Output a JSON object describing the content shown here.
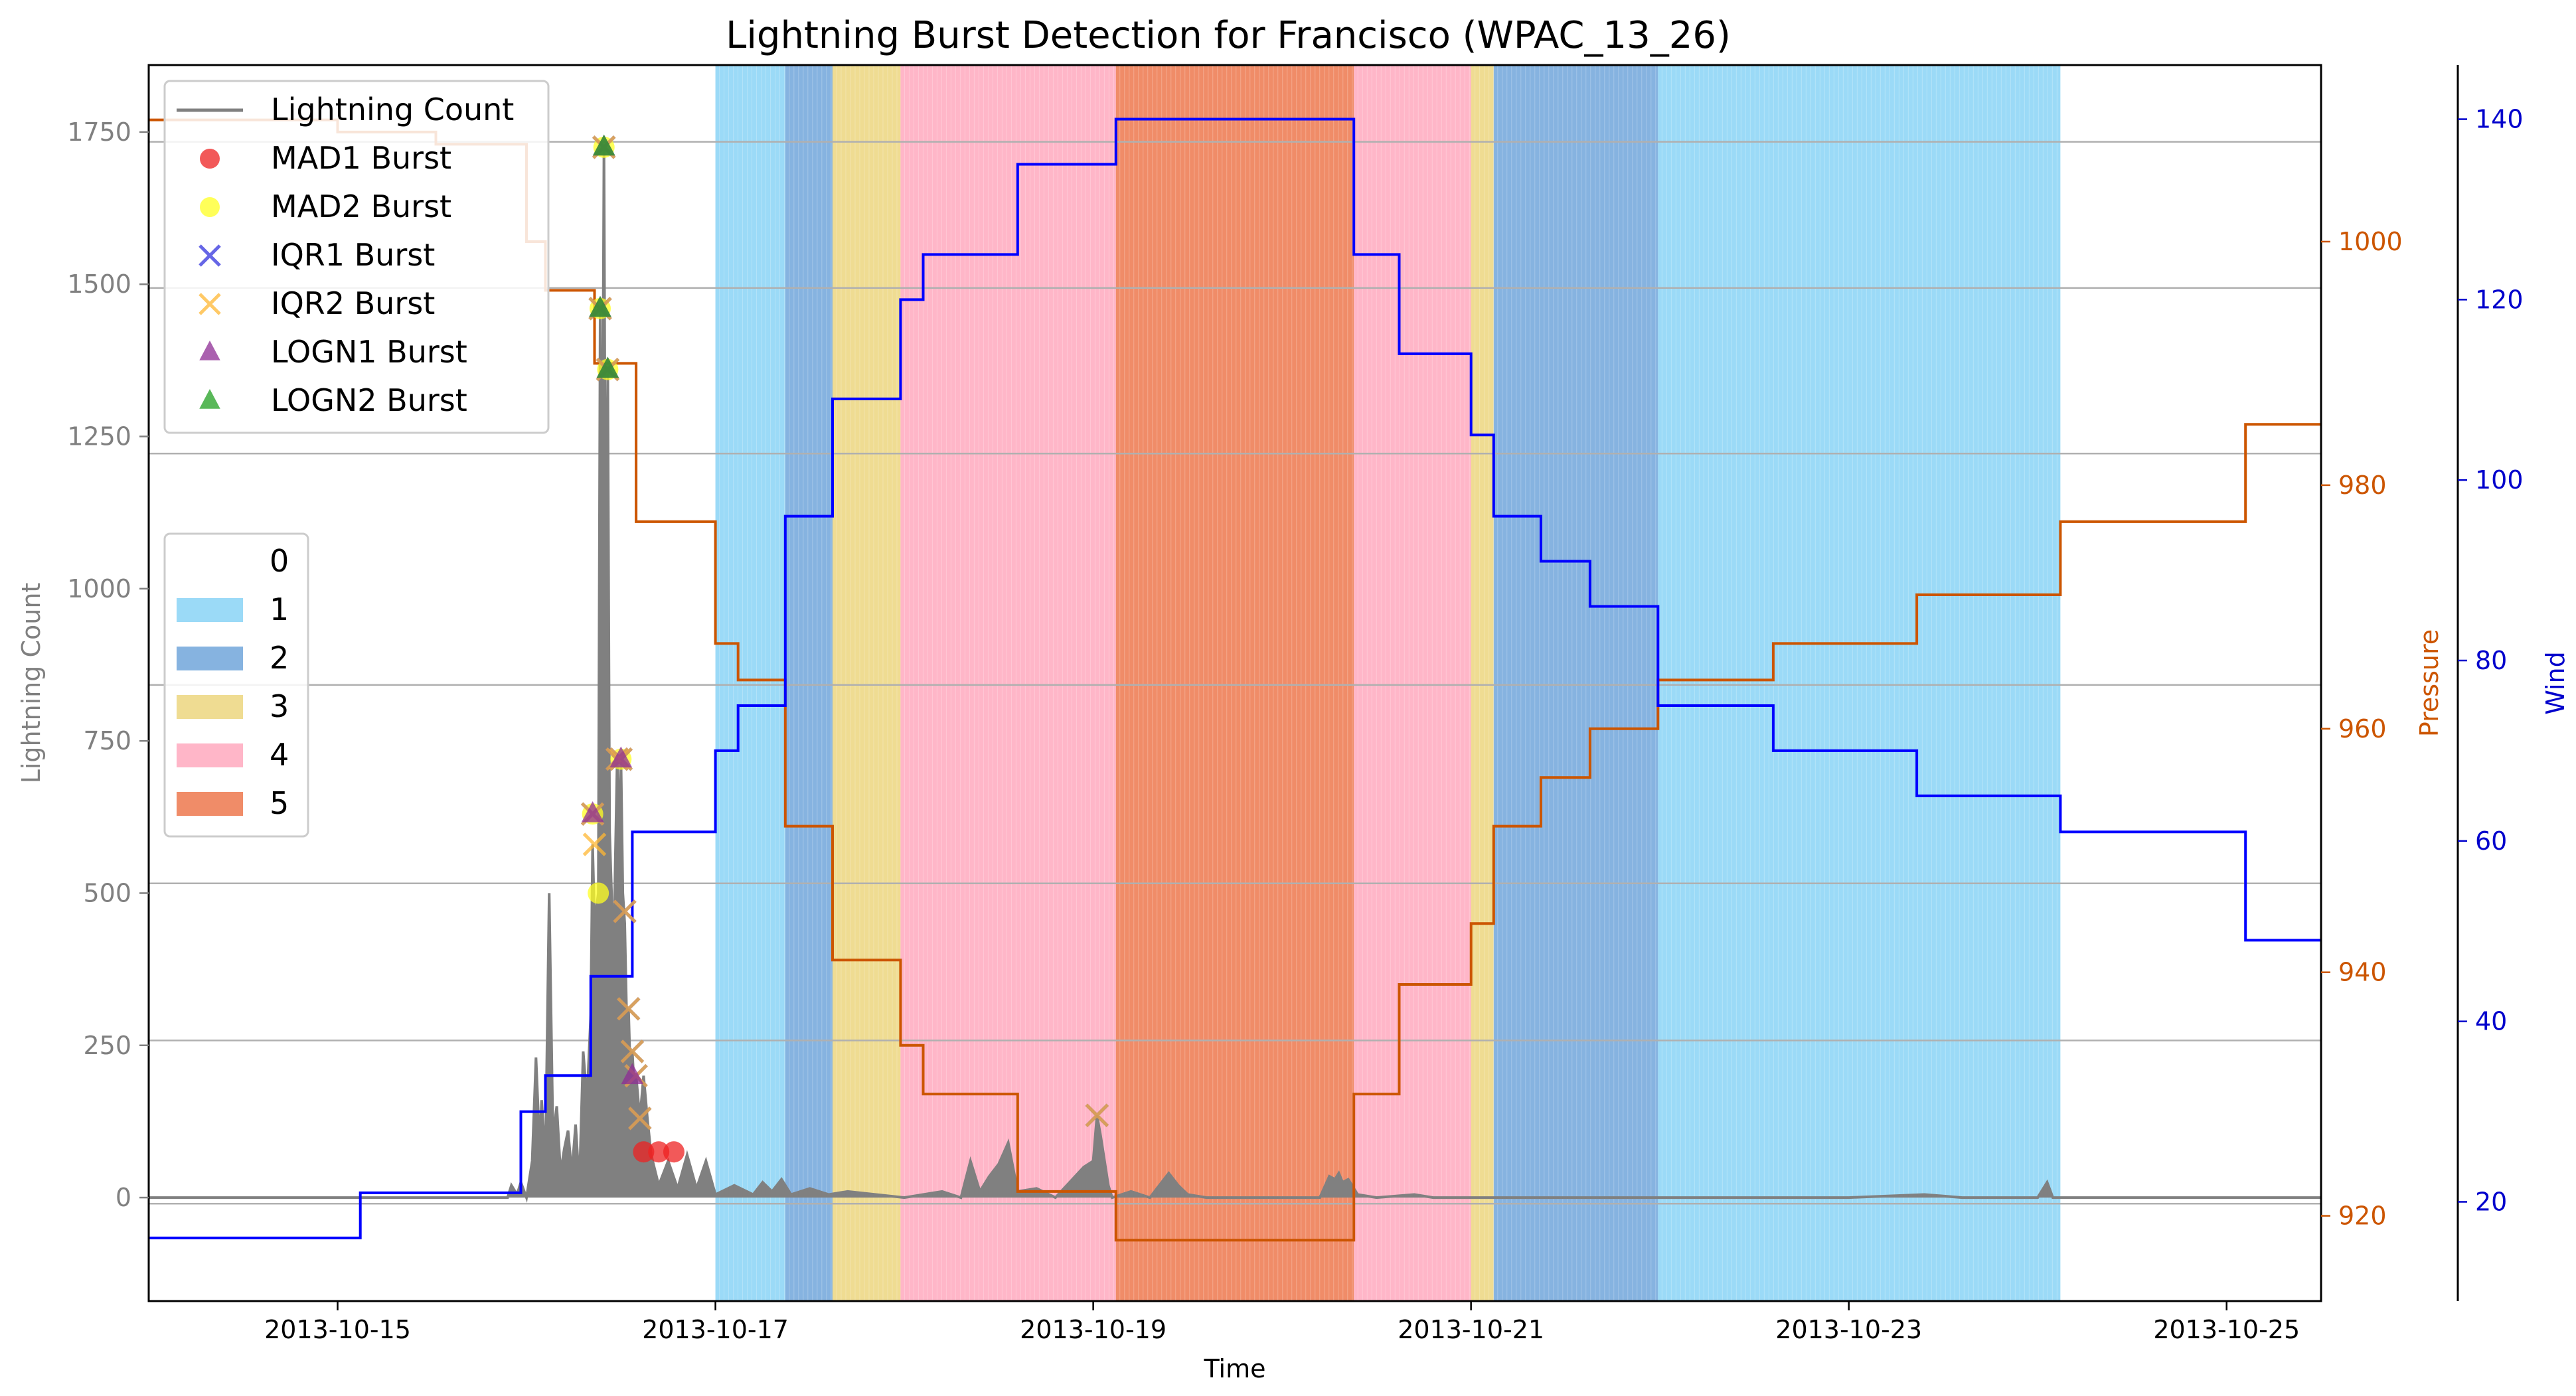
{
  "chart_data": {
    "type": "line",
    "title": "Lightning Burst Detection for Francisco (WPAC_13_26)",
    "xlabel": "Time",
    "ylabel_left": "Lightning Count",
    "ylabel_pressure": "Pressure",
    "ylabel_wind": "Wind",
    "xlim": [
      "2013-10-14T00:00",
      "2013-10-25T12:00"
    ],
    "ylim_left": [
      -170,
      1860
    ],
    "ylim_pressure": [
      913,
      1014.5
    ],
    "ylim_wind": [
      9,
      146
    ],
    "x_ticks": [
      "2013-10-15",
      "2013-10-17",
      "2013-10-19",
      "2013-10-21",
      "2013-10-23",
      "2013-10-25"
    ],
    "y_ticks_left": [
      "0",
      "250",
      "500",
      "750",
      "1000",
      "1250",
      "1500",
      "1750"
    ],
    "y_ticks_pressure": [
      "920",
      "940",
      "960",
      "980",
      "1000"
    ],
    "y_ticks_wind": [
      "20",
      "40",
      "60",
      "80",
      "100",
      "120",
      "140"
    ],
    "grid_pressure_values": [
      921,
      934.4,
      947.3,
      963.6,
      982.6,
      996.2,
      1008.2
    ],
    "colors": {
      "lightning": "#808080",
      "pressure": "#cc5500",
      "wind": "#0000ff",
      "cat1": "#9bdaf7",
      "cat2": "#86b3e0",
      "cat3": "#efdc92",
      "cat4": "#ffb6c8",
      "cat5": "#f08c68"
    },
    "category_legend": {
      "entries": [
        {
          "label": "0",
          "color": "#ffffff"
        },
        {
          "label": "1",
          "color": "#9bdaf7"
        },
        {
          "label": "2",
          "color": "#86b3e0"
        },
        {
          "label": "3",
          "color": "#efdc92"
        },
        {
          "label": "4",
          "color": "#ffb6c8"
        },
        {
          "label": "5",
          "color": "#f08c68"
        }
      ]
    },
    "burst_legend": {
      "entries": [
        {
          "label": "Lightning Count",
          "marker": "line",
          "color": "#808080"
        },
        {
          "label": "MAD1 Burst",
          "marker": "circle",
          "color": "#ee2222"
        },
        {
          "label": "MAD2 Burst",
          "marker": "circle",
          "color": "#ffff22"
        },
        {
          "label": "IQR1 Burst",
          "marker": "x",
          "color": "#3333dd"
        },
        {
          "label": "IQR2 Burst",
          "marker": "x",
          "color": "#ffb733"
        },
        {
          "label": "LOGN1 Burst",
          "marker": "triangle",
          "color": "#8e2c94"
        },
        {
          "label": "LOGN2 Burst",
          "marker": "triangle",
          "color": "#22a022"
        }
      ]
    },
    "category_bands": [
      {
        "start": 3.0,
        "end": 3.37,
        "category": 1
      },
      {
        "start": 3.37,
        "end": 3.62,
        "category": 2
      },
      {
        "start": 3.62,
        "end": 3.98,
        "category": 3
      },
      {
        "start": 3.98,
        "end": 5.12,
        "category": 4
      },
      {
        "start": 5.12,
        "end": 6.38,
        "category": 5
      },
      {
        "start": 6.38,
        "end": 7.0,
        "category": 4
      },
      {
        "start": 7.0,
        "end": 7.12,
        "category": 3
      },
      {
        "start": 7.12,
        "end": 7.99,
        "category": 2
      },
      {
        "start": 7.99,
        "end": 10.12,
        "category": 1
      }
    ],
    "series": [
      {
        "name": "Wind",
        "axis": "wind",
        "points": [
          [
            0.0,
            16
          ],
          [
            1.12,
            16
          ],
          [
            1.12,
            21
          ],
          [
            1.97,
            21
          ],
          [
            1.97,
            30
          ],
          [
            2.1,
            30
          ],
          [
            2.1,
            34
          ],
          [
            2.34,
            34
          ],
          [
            2.34,
            45
          ],
          [
            2.56,
            45
          ],
          [
            2.56,
            61
          ],
          [
            3.0,
            61
          ],
          [
            3.0,
            70
          ],
          [
            3.12,
            70
          ],
          [
            3.12,
            75
          ],
          [
            3.37,
            75
          ],
          [
            3.37,
            96
          ],
          [
            3.62,
            96
          ],
          [
            3.62,
            109
          ],
          [
            3.98,
            109
          ],
          [
            3.98,
            120
          ],
          [
            4.1,
            120
          ],
          [
            4.1,
            125
          ],
          [
            4.6,
            125
          ],
          [
            4.6,
            135
          ],
          [
            5.12,
            135
          ],
          [
            5.12,
            140
          ],
          [
            6.38,
            140
          ],
          [
            6.38,
            125
          ],
          [
            6.62,
            125
          ],
          [
            6.62,
            114
          ],
          [
            7.0,
            114
          ],
          [
            7.0,
            105
          ],
          [
            7.12,
            105
          ],
          [
            7.12,
            96
          ],
          [
            7.37,
            96
          ],
          [
            7.37,
            91
          ],
          [
            7.63,
            91
          ],
          [
            7.63,
            86
          ],
          [
            7.99,
            86
          ],
          [
            7.99,
            75
          ],
          [
            8.6,
            75
          ],
          [
            8.6,
            70
          ],
          [
            9.36,
            70
          ],
          [
            9.36,
            65
          ],
          [
            10.12,
            65
          ],
          [
            10.12,
            61
          ],
          [
            11.1,
            61
          ],
          [
            11.1,
            49
          ],
          [
            11.5,
            49
          ]
        ]
      },
      {
        "name": "Pressure",
        "axis": "pressure",
        "points": [
          [
            0.0,
            1010
          ],
          [
            1.0,
            1010
          ],
          [
            1.0,
            1009
          ],
          [
            1.52,
            1009
          ],
          [
            1.52,
            1008
          ],
          [
            2.0,
            1008
          ],
          [
            2.0,
            1000
          ],
          [
            2.1,
            1000
          ],
          [
            2.1,
            996
          ],
          [
            2.36,
            996
          ],
          [
            2.36,
            990
          ],
          [
            2.58,
            990
          ],
          [
            2.58,
            977
          ],
          [
            3.0,
            977
          ],
          [
            3.0,
            967
          ],
          [
            3.12,
            967
          ],
          [
            3.12,
            964
          ],
          [
            3.37,
            964
          ],
          [
            3.37,
            952
          ],
          [
            3.62,
            952
          ],
          [
            3.62,
            941
          ],
          [
            3.98,
            941
          ],
          [
            3.98,
            934
          ],
          [
            4.1,
            934
          ],
          [
            4.1,
            930
          ],
          [
            4.6,
            930
          ],
          [
            4.6,
            922
          ],
          [
            5.12,
            922
          ],
          [
            5.12,
            918
          ],
          [
            6.38,
            918
          ],
          [
            6.38,
            930
          ],
          [
            6.62,
            930
          ],
          [
            6.62,
            939
          ],
          [
            7.0,
            939
          ],
          [
            7.0,
            944
          ],
          [
            7.12,
            944
          ],
          [
            7.12,
            952
          ],
          [
            7.37,
            952
          ],
          [
            7.37,
            956
          ],
          [
            7.63,
            956
          ],
          [
            7.63,
            960
          ],
          [
            7.99,
            960
          ],
          [
            7.99,
            964
          ],
          [
            8.6,
            964
          ],
          [
            8.6,
            967
          ],
          [
            9.36,
            967
          ],
          [
            9.36,
            971
          ],
          [
            10.12,
            971
          ],
          [
            10.12,
            977
          ],
          [
            11.1,
            977
          ],
          [
            11.1,
            985
          ],
          [
            11.5,
            985
          ]
        ]
      },
      {
        "name": "Lightning Count",
        "axis": "left",
        "points": [
          [
            0.0,
            0
          ],
          [
            1.9,
            0
          ],
          [
            1.92,
            20
          ],
          [
            1.95,
            5
          ],
          [
            1.97,
            25
          ],
          [
            2.0,
            0
          ],
          [
            2.03,
            60
          ],
          [
            2.05,
            230
          ],
          [
            2.07,
            80
          ],
          [
            2.08,
            160
          ],
          [
            2.1,
            60
          ],
          [
            2.12,
            500
          ],
          [
            2.14,
            100
          ],
          [
            2.16,
            150
          ],
          [
            2.18,
            40
          ],
          [
            2.2,
            80
          ],
          [
            2.22,
            110
          ],
          [
            2.24,
            40
          ],
          [
            2.26,
            120
          ],
          [
            2.28,
            20
          ],
          [
            2.3,
            240
          ],
          [
            2.32,
            160
          ],
          [
            2.34,
            300
          ],
          [
            2.35,
            580
          ],
          [
            2.36,
            450
          ],
          [
            2.38,
            500
          ],
          [
            2.39,
            1460
          ],
          [
            2.4,
            1000
          ],
          [
            2.41,
            1725
          ],
          [
            2.42,
            900
          ],
          [
            2.43,
            1360
          ],
          [
            2.44,
            600
          ],
          [
            2.45,
            500
          ],
          [
            2.46,
            380
          ],
          [
            2.48,
            720
          ],
          [
            2.49,
            600
          ],
          [
            2.5,
            720
          ],
          [
            2.51,
            500
          ],
          [
            2.52,
            450
          ],
          [
            2.53,
            300
          ],
          [
            2.54,
            310
          ],
          [
            2.55,
            200
          ],
          [
            2.56,
            240
          ],
          [
            2.57,
            180
          ],
          [
            2.58,
            200
          ],
          [
            2.6,
            130
          ],
          [
            2.62,
            200
          ],
          [
            2.64,
            130
          ],
          [
            2.66,
            70
          ],
          [
            2.7,
            20
          ],
          [
            2.75,
            60
          ],
          [
            2.8,
            15
          ],
          [
            2.85,
            70
          ],
          [
            2.9,
            15
          ],
          [
            2.95,
            60
          ],
          [
            3.0,
            5
          ],
          [
            3.1,
            20
          ],
          [
            3.2,
            5
          ],
          [
            3.25,
            25
          ],
          [
            3.3,
            10
          ],
          [
            3.35,
            30
          ],
          [
            3.4,
            5
          ],
          [
            3.5,
            15
          ],
          [
            3.6,
            5
          ],
          [
            3.7,
            10
          ],
          [
            4.0,
            0
          ],
          [
            4.2,
            10
          ],
          [
            4.3,
            0
          ],
          [
            4.35,
            60
          ],
          [
            4.4,
            10
          ],
          [
            4.45,
            35
          ],
          [
            4.5,
            55
          ],
          [
            4.55,
            90
          ],
          [
            4.6,
            10
          ],
          [
            4.7,
            15
          ],
          [
            4.8,
            0
          ],
          [
            4.95,
            50
          ],
          [
            5.0,
            60
          ],
          [
            5.02,
            135
          ],
          [
            5.04,
            100
          ],
          [
            5.06,
            60
          ],
          [
            5.08,
            20
          ],
          [
            5.1,
            0
          ],
          [
            5.2,
            10
          ],
          [
            5.3,
            0
          ],
          [
            5.4,
            40
          ],
          [
            5.45,
            20
          ],
          [
            5.5,
            5
          ],
          [
            5.6,
            0
          ],
          [
            6.2,
            0
          ],
          [
            6.25,
            35
          ],
          [
            6.28,
            30
          ],
          [
            6.3,
            40
          ],
          [
            6.32,
            25
          ],
          [
            6.35,
            30
          ],
          [
            6.4,
            5
          ],
          [
            6.5,
            0
          ],
          [
            6.7,
            5
          ],
          [
            6.8,
            0
          ],
          [
            9.0,
            0
          ],
          [
            9.4,
            5
          ],
          [
            9.6,
            0
          ],
          [
            10.0,
            0
          ],
          [
            10.05,
            25
          ],
          [
            10.08,
            0
          ],
          [
            11.5,
            0
          ]
        ]
      }
    ],
    "bursts": [
      {
        "type": "MAD1",
        "points": [
          [
            2.62,
            75
          ],
          [
            2.7,
            75
          ],
          [
            2.78,
            75
          ]
        ]
      },
      {
        "type": "MAD2",
        "points": [
          [
            2.39,
            1460
          ],
          [
            2.41,
            1725
          ],
          [
            2.43,
            1360
          ],
          [
            2.5,
            720
          ],
          [
            2.35,
            630
          ],
          [
            2.38,
            500
          ]
        ]
      },
      {
        "type": "IQR1",
        "points": [
          [
            2.35,
            630
          ],
          [
            2.39,
            1460
          ],
          [
            2.41,
            1725
          ],
          [
            2.43,
            1360
          ],
          [
            2.48,
            720
          ],
          [
            2.5,
            720
          ],
          [
            2.52,
            470
          ],
          [
            2.54,
            310
          ],
          [
            2.56,
            240
          ],
          [
            2.58,
            200
          ],
          [
            2.6,
            130
          ],
          [
            5.02,
            135
          ]
        ]
      },
      {
        "type": "IQR2",
        "points": [
          [
            2.35,
            630
          ],
          [
            2.36,
            580
          ],
          [
            2.39,
            1460
          ],
          [
            2.41,
            1725
          ],
          [
            2.43,
            1360
          ],
          [
            2.48,
            720
          ],
          [
            2.5,
            720
          ],
          [
            2.52,
            470
          ],
          [
            2.54,
            310
          ],
          [
            2.56,
            240
          ],
          [
            2.58,
            200
          ],
          [
            2.6,
            130
          ],
          [
            5.02,
            135
          ]
        ]
      },
      {
        "type": "LOGN1",
        "points": [
          [
            2.35,
            630
          ],
          [
            2.39,
            1460
          ],
          [
            2.41,
            1725
          ],
          [
            2.43,
            1360
          ],
          [
            2.5,
            720
          ],
          [
            2.56,
            200
          ]
        ]
      },
      {
        "type": "LOGN2",
        "points": [
          [
            2.39,
            1460
          ],
          [
            2.41,
            1725
          ],
          [
            2.43,
            1360
          ]
        ]
      }
    ]
  }
}
